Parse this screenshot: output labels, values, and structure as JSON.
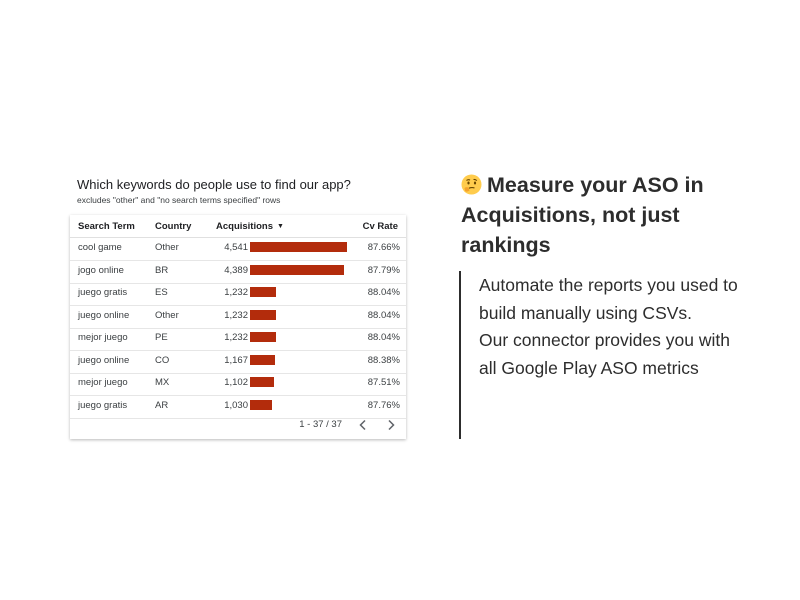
{
  "report": {
    "title": "Which keywords do people use to find our app?",
    "subtitle": "excludes \"other\" and \"no search terms specified\" rows",
    "columns": {
      "search_term": "Search Term",
      "country": "Country",
      "acquisitions": "Acquisitions",
      "cv_rate": "Cv Rate"
    },
    "sort_indicator": "▼",
    "bar_color": "#b32c0c",
    "bar_max_value": 4541,
    "rows": [
      {
        "term": "cool game",
        "country": "Other",
        "acquisitions": "4,541",
        "value": 4541,
        "cv_rate": "87.66%"
      },
      {
        "term": "jogo online",
        "country": "BR",
        "acquisitions": "4,389",
        "value": 4389,
        "cv_rate": "87.79%"
      },
      {
        "term": "juego gratis",
        "country": "ES",
        "acquisitions": "1,232",
        "value": 1232,
        "cv_rate": "88.04%"
      },
      {
        "term": "juego online",
        "country": "Other",
        "acquisitions": "1,232",
        "value": 1232,
        "cv_rate": "88.04%"
      },
      {
        "term": "mejor juego",
        "country": "PE",
        "acquisitions": "1,232",
        "value": 1232,
        "cv_rate": "88.04%"
      },
      {
        "term": "juego online",
        "country": "CO",
        "acquisitions": "1,167",
        "value": 1167,
        "cv_rate": "88.38%"
      },
      {
        "term": "mejor juego",
        "country": "MX",
        "acquisitions": "1,102",
        "value": 1102,
        "cv_rate": "87.51%"
      },
      {
        "term": "juego gratis",
        "country": "AR",
        "acquisitions": "1,030",
        "value": 1030,
        "cv_rate": "87.76%"
      }
    ],
    "pagination": {
      "text": "1 - 37 / 37",
      "prev_icon": "chevron-left-icon",
      "next_icon": "chevron-right-icon"
    }
  },
  "promo": {
    "emoji_icon": "thinking-face-icon",
    "headline": "Measure your ASO in Acquisitions, not just rankings",
    "body_lines": [
      "Automate the reports you used to build manually using CSVs.",
      "Our connector provides you with all Google Play ASO metrics"
    ]
  }
}
